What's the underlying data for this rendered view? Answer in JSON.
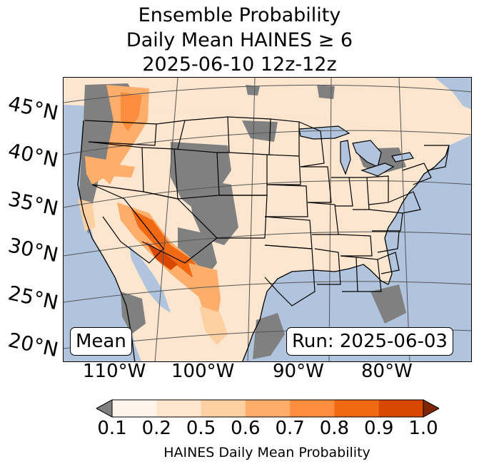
{
  "title": {
    "line1": "Ensemble Probability",
    "line2": "Daily Mean HAINES ≥ 6",
    "line3": "2025-06-10 12z-12z"
  },
  "map": {
    "ocean_color": "#b0c4de",
    "land_nodata_color": "#808080",
    "lat_labels": [
      "45°N",
      "40°N",
      "35°N",
      "30°N",
      "25°N",
      "20°N"
    ],
    "lon_labels": [
      "110°W",
      "100°W",
      "90°W",
      "80°W"
    ],
    "mean_label": "Mean",
    "run_label": "Run: 2025-06-03"
  },
  "colorbar": {
    "ticks": [
      "0.1",
      "0.2",
      "0.5",
      "0.6",
      "0.7",
      "0.8",
      "0.9",
      "1.0"
    ],
    "colors": [
      "#fff5eb",
      "#fee6ce",
      "#fdd0a2",
      "#fdae6b",
      "#fd8d3c",
      "#f16913",
      "#d94801"
    ],
    "under_color": "#808080",
    "over_color": "#7f2704",
    "label": "HAINES Daily Mean Probability"
  }
}
